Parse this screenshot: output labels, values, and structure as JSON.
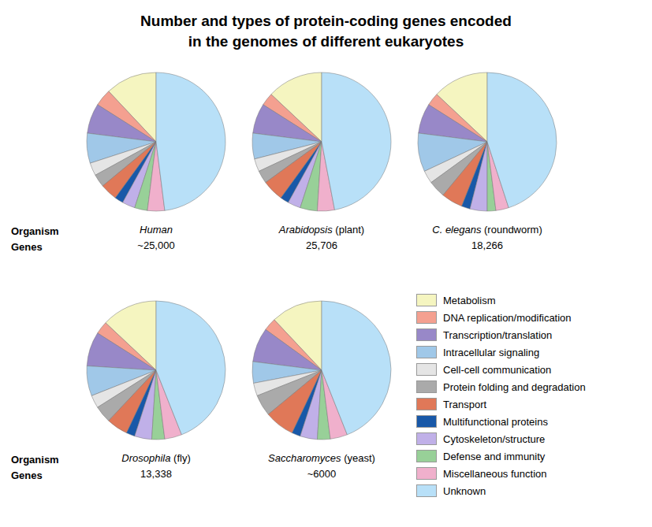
{
  "title": "Number and types of protein-coding genes encoded\nin the genomes of different eukaryotes",
  "chart_data": [
    {
      "type": "pie",
      "title": "Human",
      "subtitle": "~25,000",
      "annotations": [
        "Organism",
        "Genes"
      ],
      "categories": [
        "Metabolism",
        "DNA replication/modification",
        "Transcription/translation",
        "Intracellular signaling",
        "Cell-cell communication",
        "Protein folding and degradation",
        "Transport",
        "Multifunctional proteins",
        "Cytoskeleton/structure",
        "Defense and immunity",
        "Miscellaneous function",
        "Unknown"
      ],
      "values": [
        12,
        4,
        7,
        7,
        3,
        3,
        4,
        2,
        3,
        3,
        4,
        48
      ],
      "colors": [
        "#f5f5c0",
        "#f4a090",
        "#9888c8",
        "#a0c8e8",
        "#e5e5e5",
        "#aaaaaa",
        "#e07858",
        "#1858a8",
        "#c0b0e8",
        "#98d098",
        "#f0b0cc",
        "#b8e0f8"
      ],
      "legend": "right"
    },
    {
      "type": "pie",
      "title": "Arabidopsis (plant)",
      "subtitle": "25,706",
      "categories": [
        "Metabolism",
        "DNA replication/modification",
        "Transcription/translation",
        "Intracellular signaling",
        "Cell-cell communication",
        "Protein folding and degradation",
        "Transport",
        "Multifunctional proteins",
        "Cytoskeleton/structure",
        "Defense and immunity",
        "Miscellaneous function",
        "Unknown"
      ],
      "values": [
        13,
        3,
        7,
        6,
        3,
        3,
        5,
        2,
        3,
        4,
        4,
        47
      ],
      "colors": [
        "#f5f5c0",
        "#f4a090",
        "#9888c8",
        "#a0c8e8",
        "#e5e5e5",
        "#aaaaaa",
        "#e07858",
        "#1858a8",
        "#c0b0e8",
        "#98d098",
        "#f0b0cc",
        "#b8e0f8"
      ]
    },
    {
      "type": "pie",
      "title": "C. elegans (roundworm)",
      "subtitle": "18,266",
      "categories": [
        "Metabolism",
        "DNA replication/modification",
        "Transcription/translation",
        "Intracellular signaling",
        "Cell-cell communication",
        "Protein folding and degradation",
        "Transport",
        "Multifunctional proteins",
        "Cytoskeleton/structure",
        "Defense and immunity",
        "Miscellaneous function",
        "Unknown"
      ],
      "values": [
        13,
        3,
        7,
        9,
        3,
        4,
        5,
        2,
        4,
        2,
        3,
        45
      ],
      "colors": [
        "#f5f5c0",
        "#f4a090",
        "#9888c8",
        "#a0c8e8",
        "#e5e5e5",
        "#aaaaaa",
        "#e07858",
        "#1858a8",
        "#c0b0e8",
        "#98d098",
        "#f0b0cc",
        "#b8e0f8"
      ]
    },
    {
      "type": "pie",
      "title": "Drosophila (fly)",
      "subtitle": "13,338",
      "annotations": [
        "Organism",
        "Genes"
      ],
      "categories": [
        "Metabolism",
        "DNA replication/modification",
        "Transcription/translation",
        "Intracellular signaling",
        "Cell-cell communication",
        "Protein folding and degradation",
        "Transport",
        "Multifunctional proteins",
        "Cytoskeleton/structure",
        "Defense and immunity",
        "Miscellaneous function",
        "Unknown"
      ],
      "values": [
        13,
        3,
        8,
        7,
        3,
        4,
        5,
        2,
        4,
        3,
        4,
        44
      ],
      "colors": [
        "#f5f5c0",
        "#f4a090",
        "#9888c8",
        "#a0c8e8",
        "#e5e5e5",
        "#aaaaaa",
        "#e07858",
        "#1858a8",
        "#c0b0e8",
        "#98d098",
        "#f0b0cc",
        "#b8e0f8"
      ]
    },
    {
      "type": "pie",
      "title": "Saccharomyces (yeast)",
      "subtitle": "~6000",
      "categories": [
        "Metabolism",
        "DNA replication/modification",
        "Transcription/translation",
        "Intracellular signaling",
        "Cell-cell communication",
        "Protein folding and degradation",
        "Transport",
        "Multifunctional proteins",
        "Cytoskeleton/structure",
        "Defense and immunity",
        "Miscellaneous function",
        "Unknown"
      ],
      "values": [
        12,
        3,
        8,
        5,
        3,
        5,
        7,
        2,
        4,
        3,
        4,
        44
      ],
      "colors": [
        "#f5f5c0",
        "#f4a090",
        "#9888c8",
        "#a0c8e8",
        "#e5e5e5",
        "#aaaaaa",
        "#e07858",
        "#1858a8",
        "#c0b0e8",
        "#98d098",
        "#f0b0cc",
        "#b8e0f8"
      ]
    }
  ]
}
